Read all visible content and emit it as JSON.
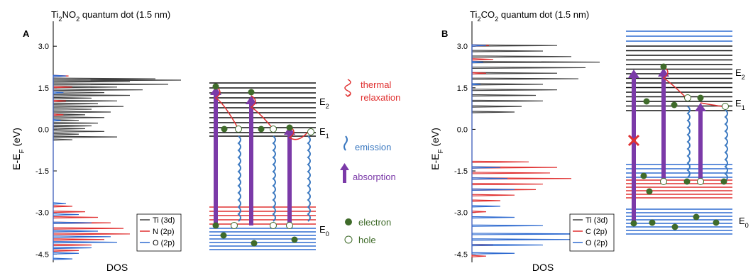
{
  "chart_data": [
    {
      "type": "line",
      "panel_label": "A",
      "title": "Ti2NO2 quantum dot (1.5 nm)",
      "title_parts": [
        "Ti",
        "2",
        "NO",
        "2",
        " quantum dot (1.5 nm)"
      ],
      "ylabel": "E-E_F (eV)",
      "xlabel": "DOS",
      "ylim": [
        -4.8,
        3.9
      ],
      "yticks": [
        "3.0",
        "1.5",
        "0.0",
        "-1.5",
        "-3.0",
        "-4.5"
      ],
      "ytick_values": [
        3.0,
        1.5,
        0.0,
        -1.5,
        -3.0,
        -4.5
      ],
      "legend_position": "bottom-right",
      "series": [
        {
          "name": "Ti (3d)",
          "color": "#404040",
          "y": [
            1.8,
            1.75,
            1.7,
            1.6,
            1.5,
            1.4,
            1.3,
            1.2,
            1.1,
            1.0,
            0.9,
            0.8,
            0.7,
            0.6,
            0.5,
            0.4,
            0.3,
            0.2,
            0.1,
            0.0,
            -0.1,
            -0.2,
            -0.3,
            -0.4
          ],
          "x": [
            0.8,
            1.0,
            0.6,
            0.9,
            0.5,
            0.7,
            0.4,
            0.6,
            0.3,
            0.5,
            0.35,
            0.55,
            0.3,
            0.45,
            0.25,
            0.4,
            0.2,
            0.35,
            0.3,
            0.25,
            0.4,
            0.2,
            0.5,
            0.15
          ]
        },
        {
          "name": "N (2p)",
          "color": "#e03030",
          "y": [
            1.9,
            1.5,
            1.0,
            0.5,
            -2.8,
            -3.0,
            -3.2,
            -3.4,
            -3.6,
            -3.8,
            -4.0,
            -4.2,
            -4.4
          ],
          "x": [
            0.12,
            0.15,
            0.1,
            0.08,
            0.15,
            0.25,
            0.35,
            0.45,
            0.55,
            0.6,
            0.4,
            0.3,
            0.2
          ]
        },
        {
          "name": "O (2p)",
          "color": "#2f6bd0",
          "y": [
            1.9,
            1.3,
            0.3,
            -2.7,
            -3.1,
            -3.4,
            -3.7,
            -3.9,
            -4.1,
            -4.3,
            -4.5,
            -4.7
          ],
          "x": [
            0.1,
            0.08,
            0.06,
            0.1,
            0.2,
            0.3,
            0.35,
            0.45,
            0.5,
            0.3,
            0.2,
            0.15
          ]
        }
      ]
    },
    {
      "type": "line",
      "panel_label": "B",
      "title": "Ti2CO2 quantum dot (1.5 nm)",
      "title_parts": [
        "Ti",
        "2",
        "CO",
        "2",
        " quantum dot (1.5 nm)"
      ],
      "ylabel": "E-E_F (eV)",
      "xlabel": "DOS",
      "ylim": [
        -4.8,
        3.9
      ],
      "yticks": [
        "3.0",
        "1.5",
        "0.0",
        "-1.5",
        "-3.0",
        "-4.5"
      ],
      "ytick_values": [
        3.0,
        1.5,
        0.0,
        -1.5,
        -3.0,
        -4.5
      ],
      "legend_position": "bottom-right",
      "series": [
        {
          "name": "Ti (3d)",
          "color": "#404040",
          "y": [
            3.0,
            2.8,
            2.6,
            2.4,
            2.2,
            2.0,
            1.8,
            1.6,
            1.4,
            1.2,
            1.0,
            0.8,
            0.6
          ],
          "x": [
            0.6,
            0.5,
            0.7,
            0.9,
            0.8,
            0.6,
            0.75,
            0.5,
            0.6,
            0.45,
            0.5,
            0.35,
            0.3
          ]
        },
        {
          "name": "C (2p)",
          "color": "#e03030",
          "y": [
            3.0,
            2.5,
            2.0,
            -1.2,
            -1.4,
            -1.6,
            -1.8,
            -2.0,
            -2.2,
            -2.4,
            -2.6,
            -3.0,
            -4.2,
            -4.6
          ],
          "x": [
            0.12,
            0.15,
            0.1,
            0.4,
            0.6,
            0.55,
            0.7,
            0.5,
            0.45,
            0.3,
            0.2,
            0.1,
            0.15,
            0.1
          ]
        },
        {
          "name": "O (2p)",
          "color": "#2f6bd0",
          "y": [
            3.0,
            2.4,
            1.6,
            -1.4,
            -1.8,
            -2.2,
            -2.8,
            -3.2,
            -3.5,
            -3.8,
            -4.0,
            -4.2,
            -4.5
          ],
          "x": [
            0.1,
            0.08,
            0.06,
            0.2,
            0.25,
            0.3,
            0.2,
            0.3,
            0.5,
            0.9,
            0.7,
            0.5,
            0.3
          ]
        }
      ]
    }
  ],
  "diagram_a": {
    "levels": {
      "E2": "E2",
      "E1": "E1",
      "E0": "E0"
    },
    "level_parts": {
      "E2": [
        "E",
        "2"
      ],
      "E1": [
        "E",
        "1"
      ],
      "E0": [
        "E",
        "0"
      ]
    }
  },
  "diagram_b": {
    "level_parts": {
      "E2": [
        "E",
        "2"
      ],
      "E1": [
        "E",
        "1"
      ],
      "E0": [
        "E",
        "0"
      ]
    }
  },
  "legend_diagram": {
    "thermal_relaxation": [
      "thermal",
      "relaxation"
    ],
    "emission": "emission",
    "absorption": "absorption",
    "electron": "electron",
    "hole": "hole"
  },
  "colors": {
    "thermal": "#e03030",
    "emission": "#3a78c0",
    "absorption": "#7b3aa8",
    "electron": "#3f6b2a",
    "hole": "#3f6b2a",
    "level_dark": "#111111",
    "level_red": "#e03030",
    "level_blue": "#2f6bd0"
  }
}
